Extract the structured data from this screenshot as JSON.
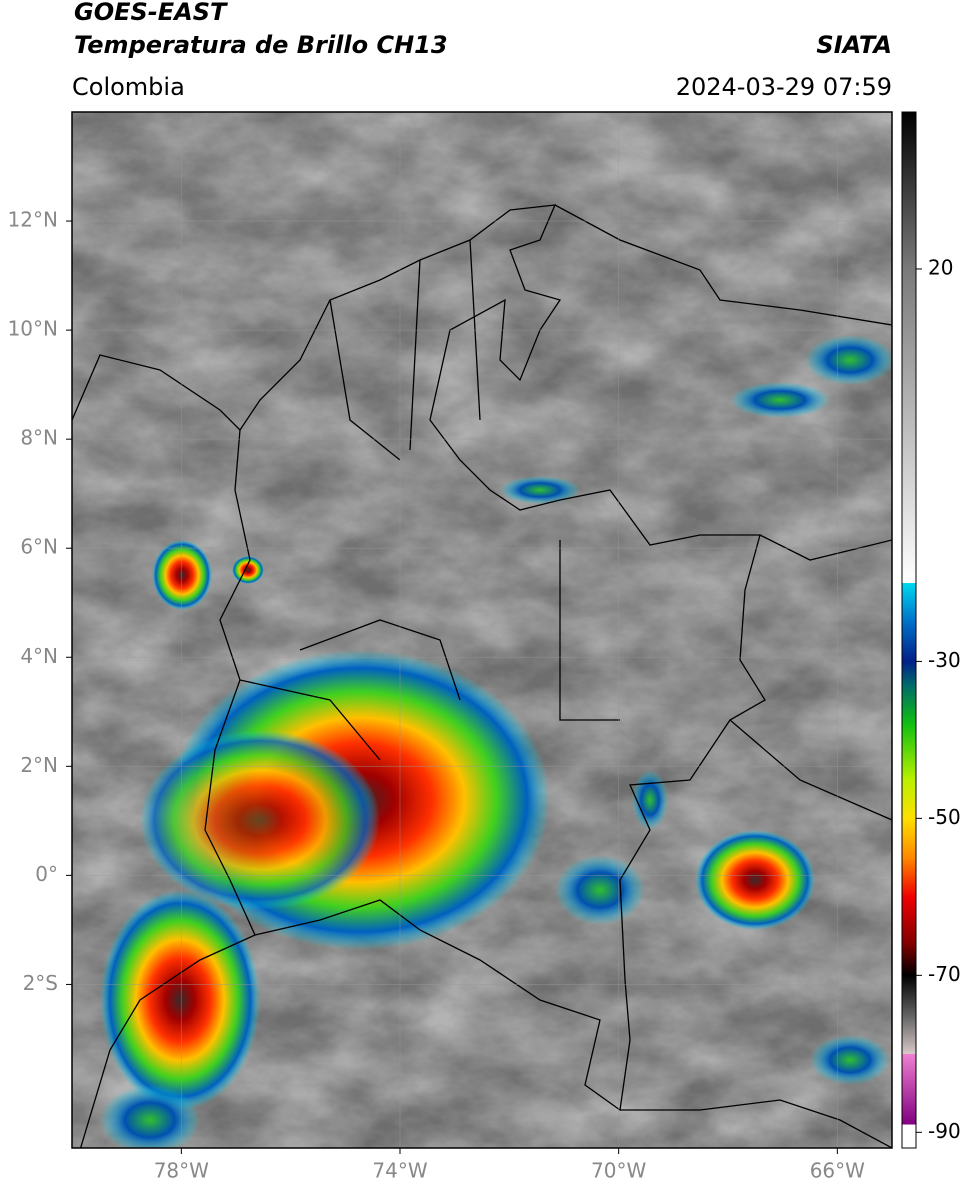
{
  "header": {
    "satellite": "GOES-EAST",
    "product": "Temperatura de Brillo CH13",
    "source": "SIATA",
    "region": "Colombia",
    "datetime": "2024-03-29 07:59"
  },
  "map": {
    "xlim": [
      -80,
      -65
    ],
    "ylim": [
      -5,
      14
    ],
    "grid": true,
    "xticks": [
      {
        "value": -78,
        "label": "78°W"
      },
      {
        "value": -74,
        "label": "74°W"
      },
      {
        "value": -70,
        "label": "70°W"
      },
      {
        "value": -66,
        "label": "66°W"
      }
    ],
    "yticks": [
      {
        "value": 12,
        "label": "12°N"
      },
      {
        "value": 10,
        "label": "10°N"
      },
      {
        "value": 8,
        "label": "8°N"
      },
      {
        "value": 6,
        "label": "6°N"
      },
      {
        "value": 4,
        "label": "4°N"
      },
      {
        "value": 2,
        "label": "2°N"
      },
      {
        "value": 0,
        "label": "0°"
      },
      {
        "value": -2,
        "label": "2°S"
      }
    ]
  },
  "colorbar": {
    "lim": [
      -92,
      40
    ],
    "ticks": [
      20,
      -30,
      -50,
      -70,
      -90
    ],
    "stops": [
      {
        "value": 40,
        "color": "#000000"
      },
      {
        "value": 20,
        "color": "#7a7a7a"
      },
      {
        "value": -20,
        "color": "#ffffff"
      },
      {
        "value": -20,
        "color": "#00d8f0"
      },
      {
        "value": -25,
        "color": "#0070c8"
      },
      {
        "value": -30,
        "color": "#00208a"
      },
      {
        "value": -33,
        "color": "#006a6a"
      },
      {
        "value": -38,
        "color": "#10c010"
      },
      {
        "value": -45,
        "color": "#b8f000"
      },
      {
        "value": -50,
        "color": "#ffe000"
      },
      {
        "value": -55,
        "color": "#ff8800"
      },
      {
        "value": -60,
        "color": "#f00000"
      },
      {
        "value": -66,
        "color": "#800000"
      },
      {
        "value": -70,
        "color": "#000000"
      },
      {
        "value": -75,
        "color": "#606060"
      },
      {
        "value": -80,
        "color": "#d8c8c8"
      },
      {
        "value": -80,
        "color": "#f080d0"
      },
      {
        "value": -89,
        "color": "#800080"
      },
      {
        "value": -89,
        "color": "#ffffff"
      },
      {
        "value": -92,
        "color": "#ffffff"
      }
    ]
  }
}
